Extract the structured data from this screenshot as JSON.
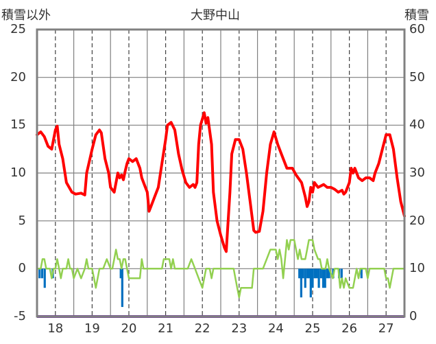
{
  "chart_data": {
    "type": "line",
    "title": "大野中山",
    "ylabel_left": "積雪以外",
    "ylabel_right": "積雪",
    "ylim_left": [
      -5,
      25
    ],
    "ylim_right": [
      0,
      60
    ],
    "left_ticks": [
      "25",
      "20",
      "15",
      "10",
      "5",
      "0",
      "-5"
    ],
    "right_ticks": [
      "60",
      "50",
      "40",
      "30",
      "20",
      "10",
      "0"
    ],
    "categories": [
      "18",
      "19",
      "20",
      "21",
      "22",
      "23",
      "24",
      "25",
      "26",
      "27"
    ],
    "xlim": [
      17.5,
      27.5
    ],
    "grid": true,
    "colors": {
      "temperature": "#ff0000",
      "wind": "#92d050",
      "precipitation": "#0070c0",
      "snow_depth": "#7030a0",
      "frame": "#808080"
    },
    "series": [
      {
        "key": "temperature",
        "axis": "left",
        "points": [
          [
            17.5,
            14.0
          ],
          [
            17.6,
            14.3
          ],
          [
            17.7,
            13.8
          ],
          [
            17.8,
            12.8
          ],
          [
            17.9,
            12.5
          ],
          [
            18.0,
            14.5
          ],
          [
            18.05,
            14.9
          ],
          [
            18.1,
            13.0
          ],
          [
            18.2,
            11.5
          ],
          [
            18.3,
            9.0
          ],
          [
            18.45,
            8.0
          ],
          [
            18.55,
            7.8
          ],
          [
            18.7,
            7.9
          ],
          [
            18.8,
            7.7
          ],
          [
            18.85,
            10.0
          ],
          [
            19.0,
            12.5
          ],
          [
            19.1,
            14.0
          ],
          [
            19.2,
            14.5
          ],
          [
            19.25,
            14.2
          ],
          [
            19.35,
            11.5
          ],
          [
            19.45,
            10.0
          ],
          [
            19.5,
            8.5
          ],
          [
            19.6,
            8.0
          ],
          [
            19.7,
            10.0
          ],
          [
            19.75,
            9.5
          ],
          [
            19.8,
            9.8
          ],
          [
            19.85,
            9.3
          ],
          [
            19.9,
            10.2
          ],
          [
            19.95,
            11.0
          ],
          [
            20.0,
            11.5
          ],
          [
            20.1,
            11.2
          ],
          [
            20.2,
            11.5
          ],
          [
            20.3,
            10.5
          ],
          [
            20.35,
            9.5
          ],
          [
            20.45,
            8.5
          ],
          [
            20.5,
            8.0
          ],
          [
            20.55,
            6.0
          ],
          [
            20.6,
            6.5
          ],
          [
            20.7,
            7.5
          ],
          [
            20.8,
            8.5
          ],
          [
            20.9,
            11.0
          ],
          [
            21.0,
            13.5
          ],
          [
            21.05,
            15.0
          ],
          [
            21.15,
            15.3
          ],
          [
            21.25,
            14.5
          ],
          [
            21.35,
            12.0
          ],
          [
            21.45,
            10.3
          ],
          [
            21.55,
            9.0
          ],
          [
            21.65,
            8.5
          ],
          [
            21.75,
            8.8
          ],
          [
            21.8,
            8.5
          ],
          [
            21.85,
            9.0
          ],
          [
            21.9,
            13.0
          ],
          [
            21.95,
            15.0
          ],
          [
            22.05,
            16.3
          ],
          [
            22.1,
            15.2
          ],
          [
            22.15,
            15.8
          ],
          [
            22.25,
            13.0
          ],
          [
            22.3,
            8.0
          ],
          [
            22.4,
            5.0
          ],
          [
            22.5,
            3.5
          ],
          [
            22.6,
            2.2
          ],
          [
            22.65,
            1.8
          ],
          [
            22.75,
            8.0
          ],
          [
            22.8,
            12.0
          ],
          [
            22.9,
            13.5
          ],
          [
            23.0,
            13.5
          ],
          [
            23.1,
            12.5
          ],
          [
            23.2,
            10.0
          ],
          [
            23.3,
            7.0
          ],
          [
            23.4,
            4.0
          ],
          [
            23.45,
            3.8
          ],
          [
            23.55,
            3.9
          ],
          [
            23.65,
            6.0
          ],
          [
            23.75,
            10.0
          ],
          [
            23.85,
            13.0
          ],
          [
            23.95,
            14.3
          ],
          [
            24.05,
            13.0
          ],
          [
            24.15,
            12.0
          ],
          [
            24.3,
            10.5
          ],
          [
            24.45,
            10.5
          ],
          [
            24.55,
            9.8
          ],
          [
            24.7,
            9.0
          ],
          [
            24.8,
            7.5
          ],
          [
            24.85,
            6.5
          ],
          [
            24.9,
            7.0
          ],
          [
            24.95,
            8.5
          ],
          [
            25.0,
            8.0
          ],
          [
            25.05,
            9.0
          ],
          [
            25.15,
            8.5
          ],
          [
            25.3,
            8.8
          ],
          [
            25.4,
            8.5
          ],
          [
            25.5,
            8.5
          ],
          [
            25.6,
            8.3
          ],
          [
            25.7,
            8.0
          ],
          [
            25.8,
            8.2
          ],
          [
            25.85,
            7.8
          ],
          [
            25.9,
            8.0
          ],
          [
            26.0,
            9.0
          ],
          [
            26.05,
            10.5
          ],
          [
            26.1,
            10.0
          ],
          [
            26.15,
            10.5
          ],
          [
            26.25,
            9.5
          ],
          [
            26.35,
            9.2
          ],
          [
            26.45,
            9.5
          ],
          [
            26.55,
            9.5
          ],
          [
            26.65,
            9.2
          ],
          [
            26.7,
            10.0
          ],
          [
            26.8,
            11.0
          ],
          [
            26.9,
            12.5
          ],
          [
            27.0,
            14.0
          ],
          [
            27.1,
            14.0
          ],
          [
            27.2,
            12.5
          ],
          [
            27.3,
            9.5
          ],
          [
            27.4,
            7.0
          ],
          [
            27.5,
            5.5
          ]
        ]
      },
      {
        "key": "wind",
        "axis": "left",
        "points": [
          [
            17.5,
            0
          ],
          [
            17.6,
            0
          ],
          [
            17.65,
            1
          ],
          [
            17.7,
            1
          ],
          [
            17.75,
            0
          ],
          [
            17.85,
            0
          ],
          [
            17.9,
            -1
          ],
          [
            17.95,
            0
          ],
          [
            18.0,
            0
          ],
          [
            18.05,
            1
          ],
          [
            18.1,
            0
          ],
          [
            18.15,
            -1
          ],
          [
            18.2,
            0
          ],
          [
            18.3,
            0
          ],
          [
            18.35,
            1
          ],
          [
            18.4,
            0
          ],
          [
            18.45,
            0
          ],
          [
            18.5,
            -1
          ],
          [
            18.6,
            0
          ],
          [
            18.7,
            -1
          ],
          [
            18.8,
            0
          ],
          [
            18.85,
            1
          ],
          [
            18.9,
            0
          ],
          [
            19.0,
            0
          ],
          [
            19.05,
            -1
          ],
          [
            19.1,
            -2
          ],
          [
            19.2,
            0
          ],
          [
            19.3,
            0
          ],
          [
            19.4,
            1
          ],
          [
            19.5,
            0
          ],
          [
            19.55,
            0
          ],
          [
            19.6,
            1
          ],
          [
            19.65,
            2
          ],
          [
            19.7,
            1
          ],
          [
            19.75,
            1
          ],
          [
            19.8,
            0
          ],
          [
            19.85,
            1
          ],
          [
            19.9,
            1
          ],
          [
            19.95,
            0
          ],
          [
            20.0,
            -1
          ],
          [
            20.05,
            -1
          ],
          [
            20.3,
            -1
          ],
          [
            20.35,
            1
          ],
          [
            20.4,
            0
          ],
          [
            20.9,
            0
          ],
          [
            20.95,
            1
          ],
          [
            21.1,
            1
          ],
          [
            21.15,
            0
          ],
          [
            21.2,
            1
          ],
          [
            21.25,
            0
          ],
          [
            21.6,
            0
          ],
          [
            21.7,
            1
          ],
          [
            21.8,
            0
          ],
          [
            21.9,
            -1
          ],
          [
            22.0,
            -2
          ],
          [
            22.1,
            0
          ],
          [
            22.2,
            0
          ],
          [
            22.25,
            -1
          ],
          [
            22.3,
            0
          ],
          [
            22.85,
            0
          ],
          [
            22.9,
            -1
          ],
          [
            22.95,
            -2
          ],
          [
            23.0,
            -3
          ],
          [
            23.05,
            -2
          ],
          [
            23.1,
            -2
          ],
          [
            23.35,
            -2
          ],
          [
            23.4,
            0
          ],
          [
            23.65,
            0
          ],
          [
            23.75,
            1
          ],
          [
            23.85,
            2
          ],
          [
            24.0,
            2
          ],
          [
            24.05,
            1
          ],
          [
            24.1,
            2
          ],
          [
            24.15,
            1
          ],
          [
            24.2,
            -1
          ],
          [
            24.25,
            1
          ],
          [
            24.3,
            3
          ],
          [
            24.35,
            2
          ],
          [
            24.4,
            3
          ],
          [
            24.5,
            3
          ],
          [
            24.55,
            2
          ],
          [
            24.6,
            1
          ],
          [
            24.65,
            2
          ],
          [
            24.7,
            1
          ],
          [
            24.8,
            1
          ],
          [
            24.85,
            2
          ],
          [
            24.9,
            3
          ],
          [
            25.0,
            3
          ],
          [
            25.05,
            2
          ],
          [
            25.15,
            1
          ],
          [
            25.2,
            1
          ],
          [
            25.25,
            0
          ],
          [
            25.35,
            0
          ],
          [
            25.4,
            1
          ],
          [
            25.45,
            0
          ],
          [
            25.55,
            -1
          ],
          [
            25.6,
            0
          ],
          [
            25.7,
            0
          ],
          [
            25.75,
            -2
          ],
          [
            25.8,
            -1
          ],
          [
            25.85,
            -2
          ],
          [
            25.9,
            -1
          ],
          [
            26.0,
            -2
          ],
          [
            26.1,
            -2
          ],
          [
            26.15,
            -1
          ],
          [
            26.2,
            0
          ],
          [
            26.25,
            -1
          ],
          [
            26.3,
            0
          ],
          [
            26.45,
            0
          ],
          [
            26.5,
            -1
          ],
          [
            26.55,
            0
          ],
          [
            26.95,
            0
          ],
          [
            27.0,
            -1
          ],
          [
            27.05,
            -1
          ],
          [
            27.1,
            -2
          ],
          [
            27.15,
            -1
          ],
          [
            27.2,
            0
          ],
          [
            27.5,
            0
          ]
        ]
      },
      {
        "key": "precipitation",
        "axis": "left",
        "bars": [
          [
            17.57,
            -1
          ],
          [
            17.64,
            -1
          ],
          [
            17.71,
            -2
          ],
          [
            17.93,
            -1
          ],
          [
            19.78,
            -1
          ],
          [
            19.82,
            -4
          ],
          [
            24.64,
            -1
          ],
          [
            24.69,
            -3
          ],
          [
            24.74,
            -1
          ],
          [
            24.8,
            -2
          ],
          [
            24.86,
            -1
          ],
          [
            24.9,
            -1
          ],
          [
            24.95,
            -3
          ],
          [
            25.0,
            -2
          ],
          [
            25.06,
            -1
          ],
          [
            25.11,
            -1
          ],
          [
            25.17,
            -2
          ],
          [
            25.23,
            -1
          ],
          [
            25.29,
            -2
          ],
          [
            25.34,
            -2
          ],
          [
            25.4,
            -1
          ],
          [
            25.45,
            -1
          ],
          [
            25.56,
            -1
          ],
          [
            25.72,
            -1
          ],
          [
            25.79,
            -1
          ],
          [
            26.33,
            -1
          ]
        ]
      },
      {
        "key": "snow_depth",
        "axis": "right",
        "points": [
          [
            17.5,
            0
          ],
          [
            27.5,
            0
          ]
        ]
      }
    ]
  }
}
